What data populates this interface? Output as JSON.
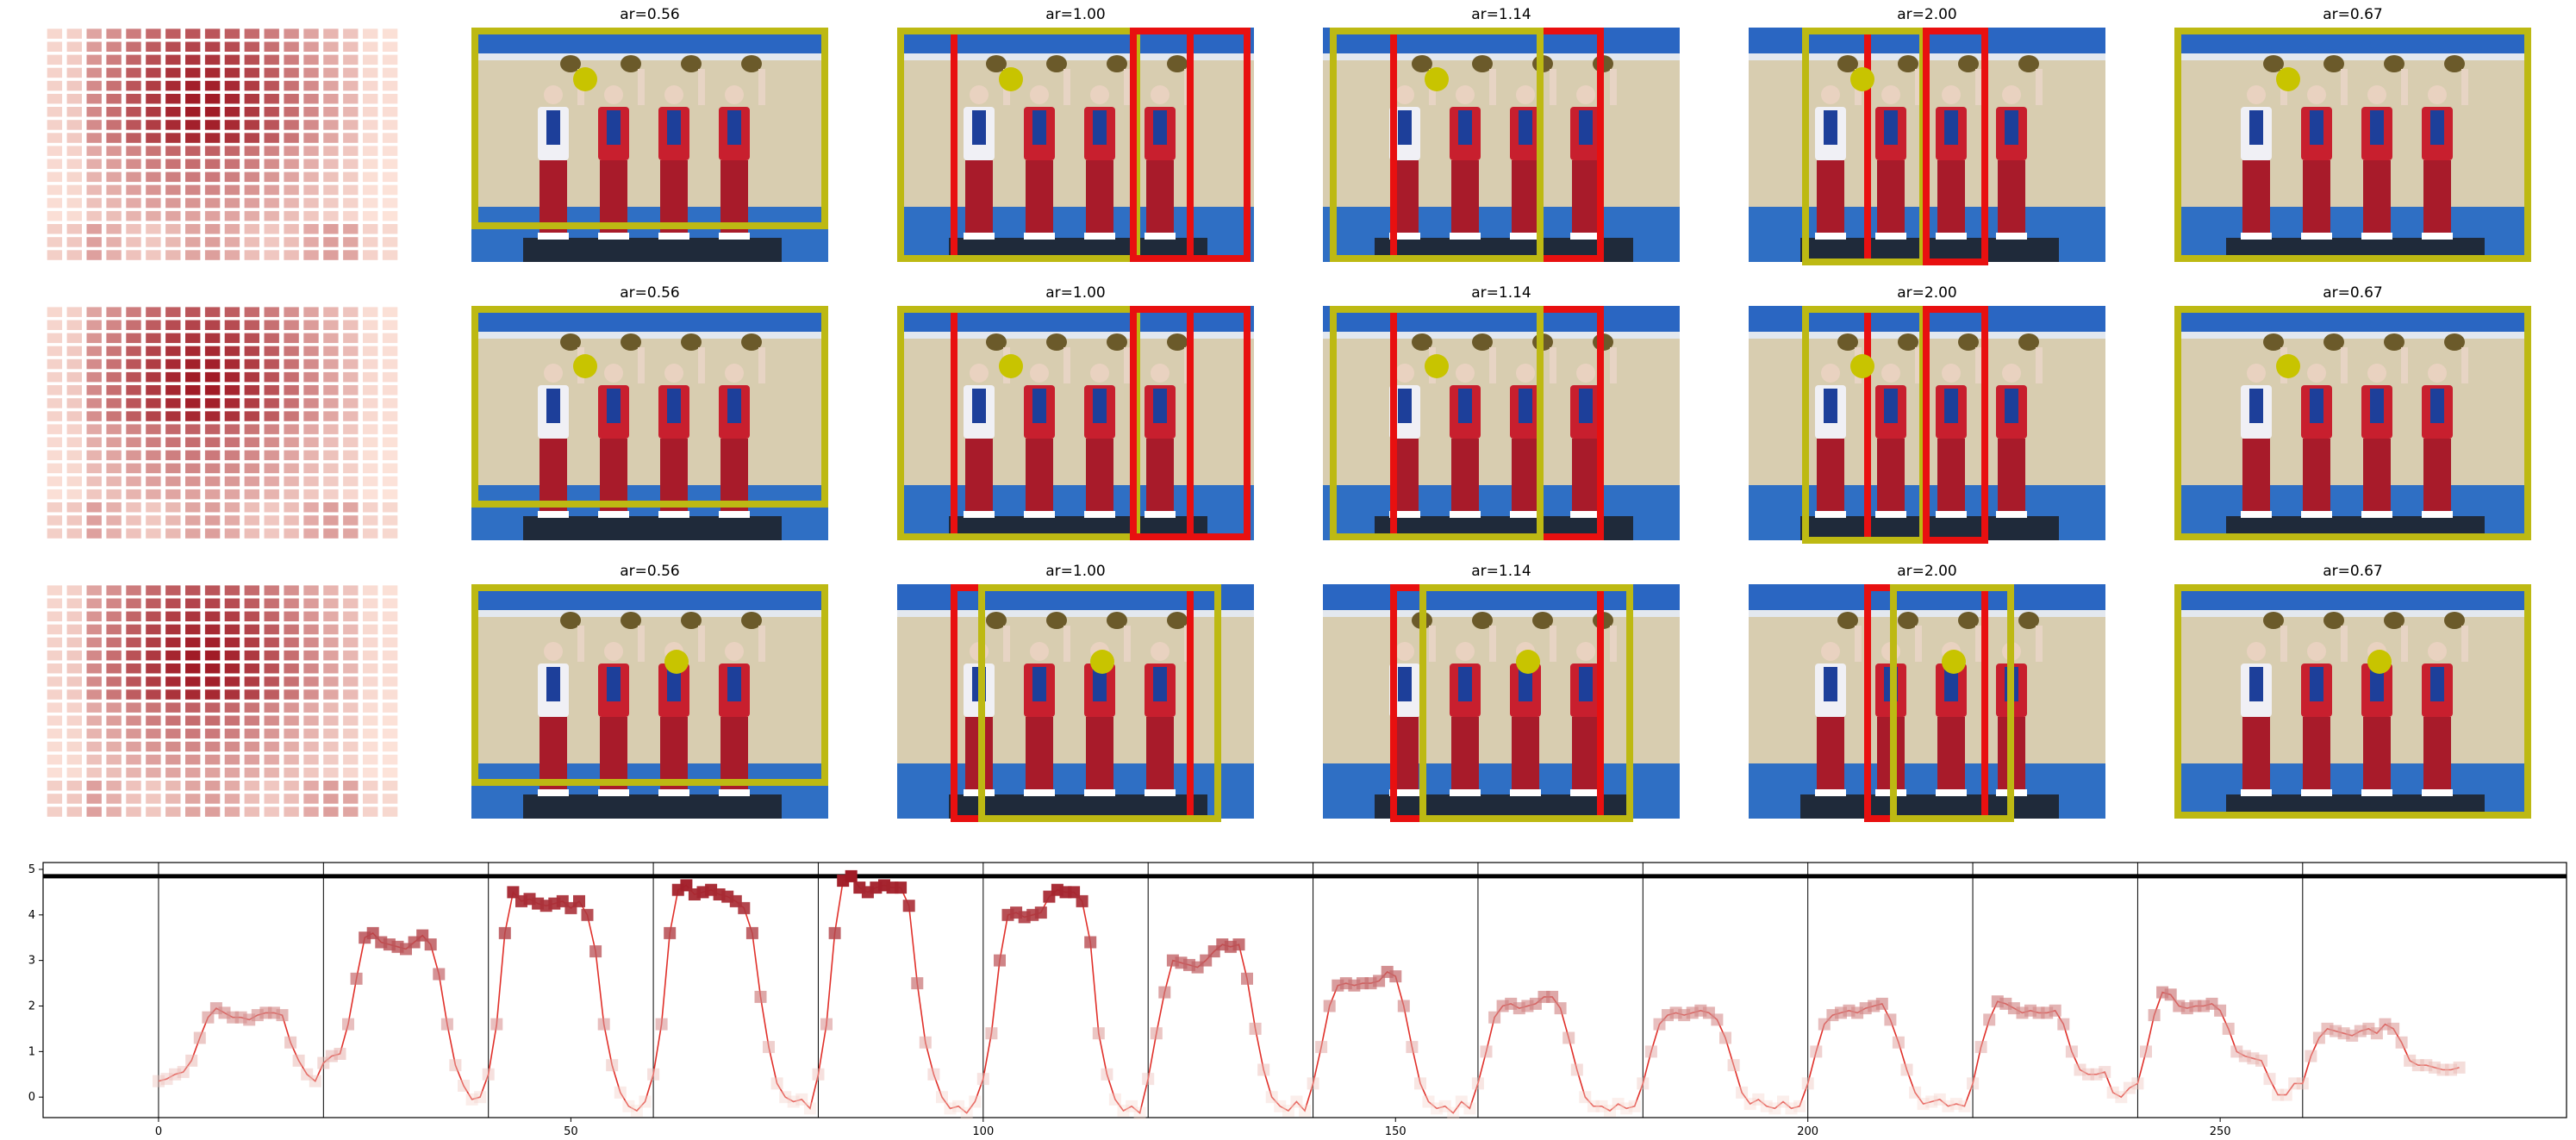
{
  "figure": {
    "rows": [
      {
        "panels": [
          {
            "title": "ar=0.56",
            "dot": "left"
          },
          {
            "title": "ar=1.00",
            "dot": "left"
          },
          {
            "title": "ar=1.14",
            "dot": "left"
          },
          {
            "title": "ar=2.00",
            "dot": "left"
          },
          {
            "title": "ar=0.67",
            "dot": "left"
          }
        ]
      },
      {
        "panels": [
          {
            "title": "ar=0.56",
            "dot": "left-high"
          },
          {
            "title": "ar=1.00",
            "dot": "left-high"
          },
          {
            "title": "ar=1.14",
            "dot": "left-high"
          },
          {
            "title": "ar=2.00",
            "dot": "left-high"
          },
          {
            "title": "ar=0.67",
            "dot": "left-high"
          }
        ]
      },
      {
        "panels": [
          {
            "title": "ar=0.56",
            "dot": "center"
          },
          {
            "title": "ar=1.00",
            "dot": "center"
          },
          {
            "title": "ar=1.14",
            "dot": "center"
          },
          {
            "title": "ar=2.00",
            "dot": "center"
          },
          {
            "title": "ar=0.67",
            "dot": "center"
          }
        ]
      }
    ],
    "colors": {
      "yellow_box": "#bdb913",
      "red_box": "#e81010",
      "dot": "#c8c400",
      "line": "#e0302a",
      "heat_dark": "#a01a25",
      "heat_light": "#fee6dc"
    }
  },
  "chart_data": {
    "type": "line",
    "x_ticks": [
      0,
      50,
      100,
      150,
      200,
      250
    ],
    "y_ticks": [
      0,
      1,
      2,
      3,
      4,
      5
    ],
    "xlim": [
      -14,
      292
    ],
    "ylim": [
      -0.45,
      5.15
    ],
    "segment_boundaries": [
      0,
      20,
      40,
      60,
      80,
      100,
      120,
      140,
      160,
      180,
      200,
      220,
      240,
      260
    ],
    "horizontal_line": 4.85,
    "grid": false,
    "series": [
      {
        "values": [
          0.35,
          0.4,
          0.5,
          0.55,
          0.8,
          1.3,
          1.75,
          1.95,
          1.85,
          1.75,
          1.75,
          1.7,
          1.8,
          1.85,
          1.85,
          1.8,
          1.2,
          0.8,
          0.5,
          0.35,
          0.75,
          0.9,
          0.95,
          1.6,
          2.6,
          3.5,
          3.6,
          3.4,
          3.35,
          3.3,
          3.25,
          3.4,
          3.55,
          3.35,
          2.7,
          1.6,
          0.7,
          0.25,
          -0.05,
          0.0,
          0.5,
          1.6,
          3.6,
          4.5,
          4.3,
          4.35,
          4.25,
          4.2,
          4.25,
          4.3,
          4.15,
          4.3,
          4.0,
          3.2,
          1.6,
          0.7,
          0.1,
          -0.2,
          -0.3,
          -0.1,
          0.5,
          1.6,
          3.6,
          4.55,
          4.65,
          4.45,
          4.5,
          4.55,
          4.45,
          4.4,
          4.3,
          4.15,
          3.6,
          2.2,
          1.1,
          0.3,
          0.0,
          -0.1,
          -0.05,
          -0.25,
          0.5,
          1.6,
          3.6,
          4.75,
          4.85,
          4.6,
          4.5,
          4.6,
          4.65,
          4.6,
          4.6,
          4.2,
          2.5,
          1.2,
          0.5,
          0.0,
          -0.25,
          -0.2,
          -0.35,
          -0.1,
          0.4,
          1.4,
          3.0,
          4.0,
          4.05,
          3.95,
          4.0,
          4.05,
          4.4,
          4.55,
          4.5,
          4.5,
          4.3,
          3.4,
          1.4,
          0.5,
          -0.05,
          -0.3,
          -0.2,
          -0.35,
          0.4,
          1.4,
          2.3,
          3.0,
          2.95,
          2.9,
          2.85,
          3.0,
          3.2,
          3.35,
          3.3,
          3.35,
          2.6,
          1.5,
          0.6,
          0.0,
          -0.2,
          -0.3,
          -0.1,
          -0.3,
          0.3,
          1.1,
          2.0,
          2.45,
          2.5,
          2.45,
          2.5,
          2.5,
          2.55,
          2.75,
          2.65,
          2.0,
          1.1,
          0.3,
          -0.1,
          -0.25,
          -0.2,
          -0.35,
          -0.1,
          -0.25,
          0.3,
          1.0,
          1.75,
          2.0,
          2.05,
          1.95,
          2.0,
          2.05,
          2.2,
          2.2,
          1.95,
          1.3,
          0.6,
          0.0,
          -0.2,
          -0.2,
          -0.3,
          -0.15,
          -0.25,
          -0.2,
          0.3,
          1.0,
          1.6,
          1.8,
          1.85,
          1.8,
          1.85,
          1.9,
          1.85,
          1.7,
          1.3,
          0.7,
          0.1,
          -0.15,
          -0.05,
          -0.2,
          -0.25,
          -0.1,
          -0.25,
          -0.2,
          0.3,
          1.0,
          1.6,
          1.8,
          1.85,
          1.9,
          1.85,
          1.95,
          2.0,
          2.05,
          1.7,
          1.2,
          0.6,
          0.1,
          -0.15,
          -0.1,
          -0.05,
          -0.2,
          -0.15,
          -0.2,
          0.3,
          1.1,
          1.7,
          2.1,
          2.05,
          1.95,
          1.85,
          1.9,
          1.85,
          1.85,
          1.9,
          1.6,
          1.0,
          0.6,
          0.5,
          0.5,
          0.55,
          0.1,
          0.0,
          0.2,
          0.3,
          1.0,
          1.8,
          2.3,
          2.25,
          2.0,
          1.95,
          2.0,
          2.0,
          2.05,
          1.9,
          1.5,
          1.0,
          0.9,
          0.85,
          0.8,
          0.4,
          0.05,
          0.05,
          0.3,
          0.3,
          0.9,
          1.3,
          1.5,
          1.45,
          1.4,
          1.35,
          1.45,
          1.5,
          1.4,
          1.6,
          1.5,
          1.2,
          0.8,
          0.7,
          0.7,
          0.65,
          0.6,
          0.6,
          0.65
        ]
      }
    ]
  }
}
